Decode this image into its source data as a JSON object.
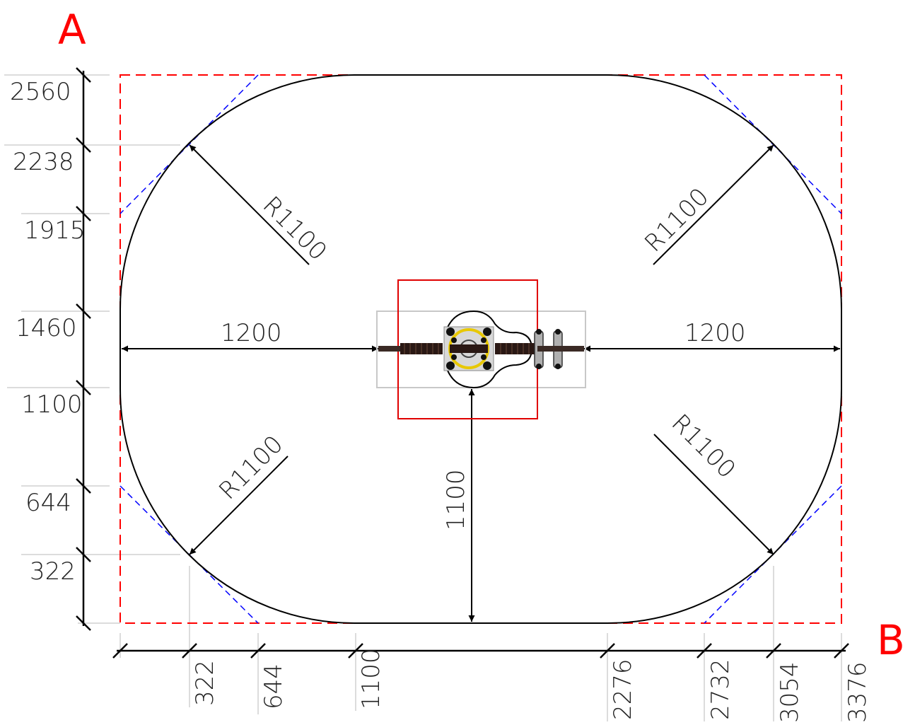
{
  "corner_labels": {
    "top_left": "A",
    "bottom_right": "B"
  },
  "vertical_ticks": [
    "2560",
    "2238",
    "1915",
    "1460",
    "1100",
    "644",
    "322"
  ],
  "horizontal_ticks": [
    "322",
    "644",
    "1100",
    "2276",
    "2732",
    "3054",
    "3376"
  ],
  "radius_labels": {
    "top_left": "R1100",
    "top_right": "R1100",
    "bottom_left": "R1100",
    "bottom_right": "R1100"
  },
  "clearance_labels": {
    "left": "1200",
    "right": "1200",
    "bottom": "1100"
  },
  "colors": {
    "outline": "#000000",
    "boundary": "#ff0000",
    "chamfer": "#0000ff",
    "guide": "#cccccc"
  }
}
